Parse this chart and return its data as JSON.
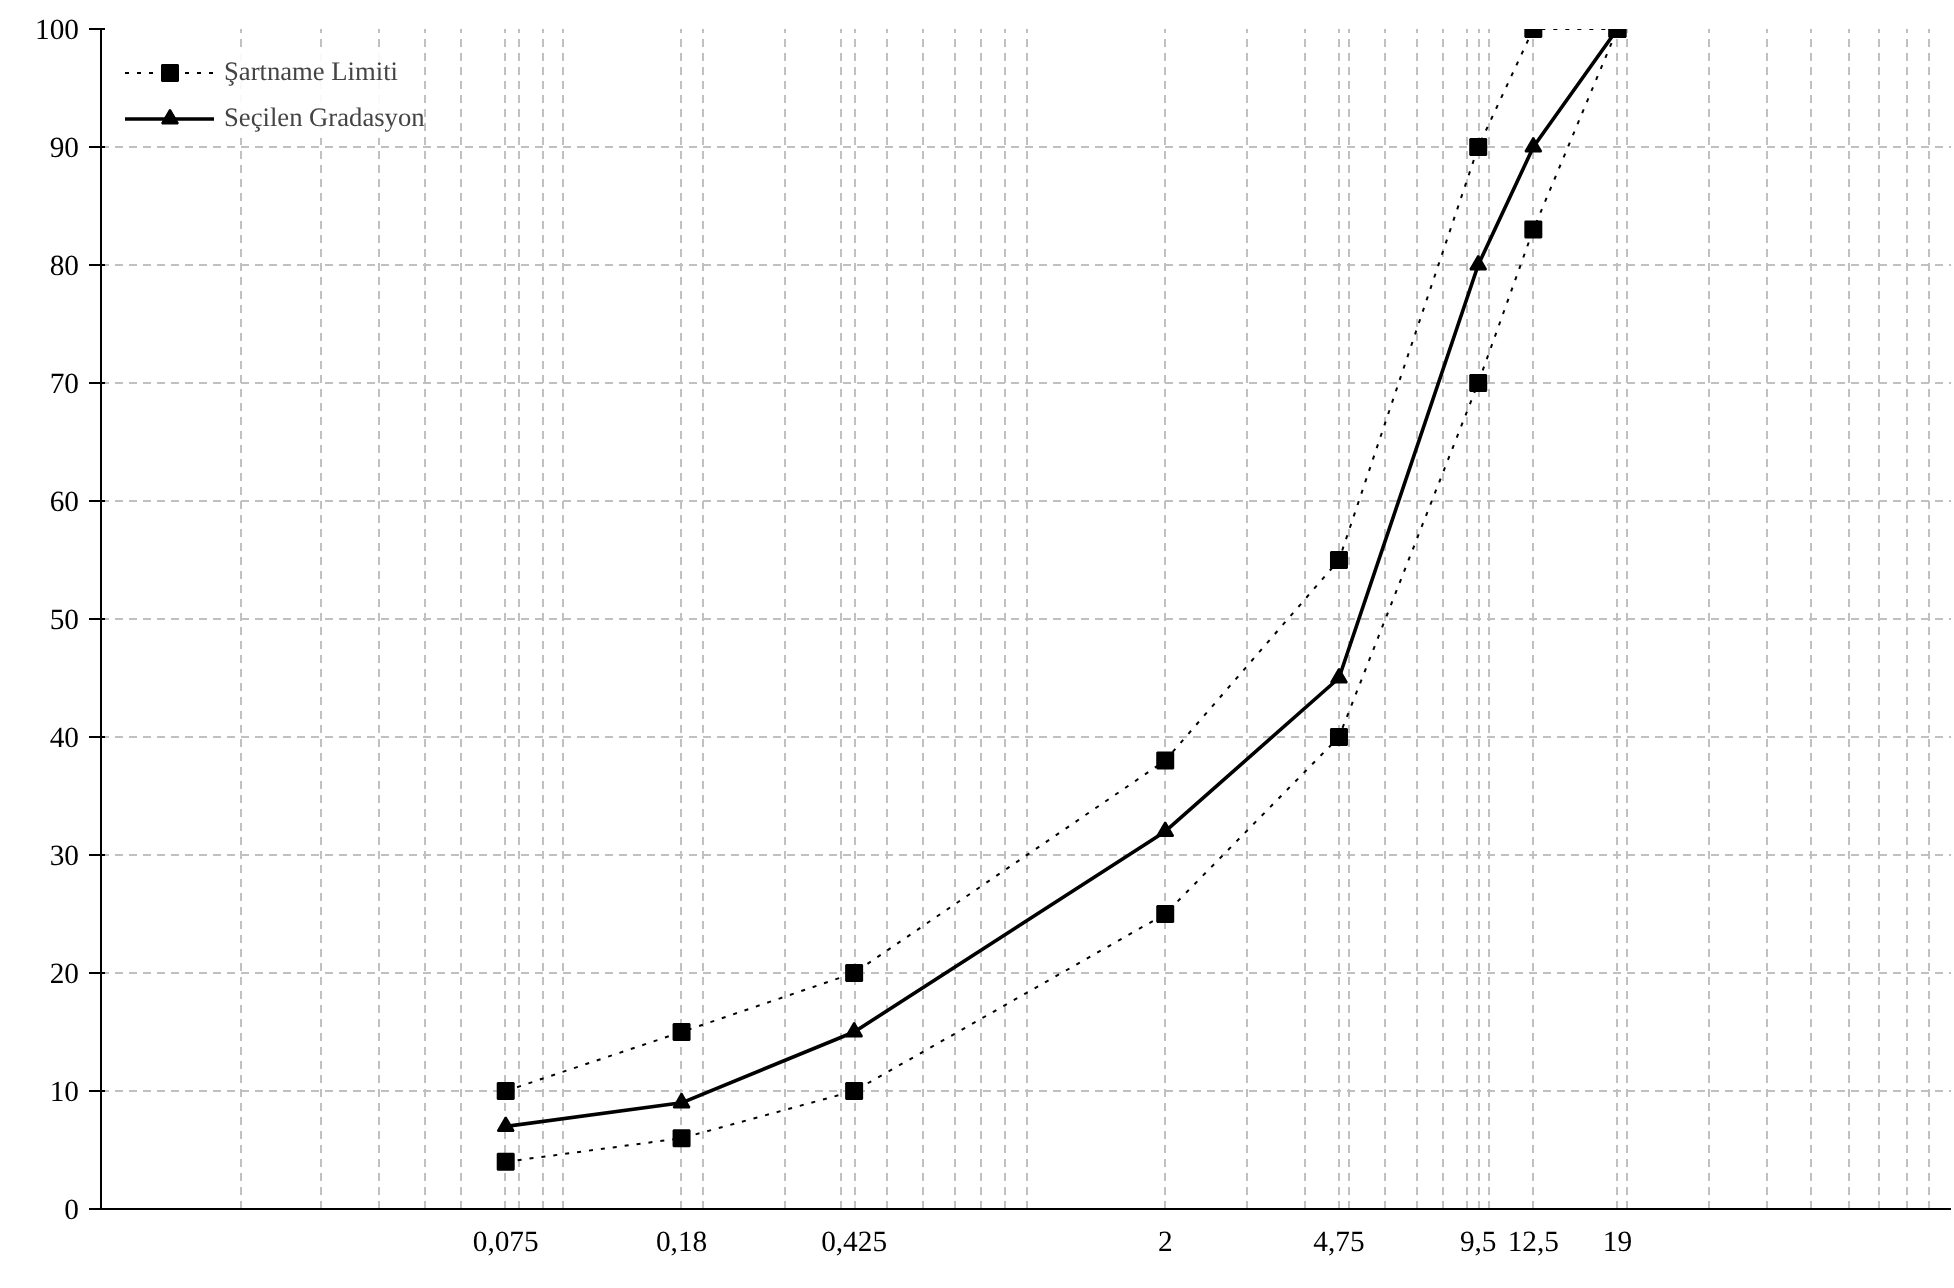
{
  "chart_data": {
    "type": "line",
    "log": "x",
    "grid": true,
    "legend": "top left",
    "xlim": [
      0.01,
      100
    ],
    "ylim": [
      0,
      100
    ],
    "xticks": [
      {
        "value": 0.02,
        "label": null
      },
      {
        "value": 0.03,
        "label": null
      },
      {
        "value": 0.04,
        "label": null
      },
      {
        "value": 0.05,
        "label": null
      },
      {
        "value": 0.06,
        "label": null
      },
      {
        "value": 0.075,
        "label": "0,075"
      },
      {
        "value": 0.08,
        "label": null
      },
      {
        "value": 0.09,
        "label": null
      },
      {
        "value": 0.1,
        "label": null
      },
      {
        "value": 0.18,
        "label": "0,18"
      },
      {
        "value": 0.2,
        "label": null
      },
      {
        "value": 0.3,
        "label": null
      },
      {
        "value": 0.4,
        "label": null
      },
      {
        "value": 0.425,
        "label": "0,425"
      },
      {
        "value": 0.5,
        "label": null
      },
      {
        "value": 0.6,
        "label": null
      },
      {
        "value": 0.7,
        "label": null
      },
      {
        "value": 0.8,
        "label": null
      },
      {
        "value": 0.9,
        "label": null
      },
      {
        "value": 1,
        "label": null
      },
      {
        "value": 2,
        "label": "2"
      },
      {
        "value": 3,
        "label": null
      },
      {
        "value": 4,
        "label": null
      },
      {
        "value": 4.75,
        "label": "4,75"
      },
      {
        "value": 5,
        "label": null
      },
      {
        "value": 6,
        "label": null
      },
      {
        "value": 7,
        "label": null
      },
      {
        "value": 8,
        "label": null
      },
      {
        "value": 9,
        "label": null
      },
      {
        "value": 9.5,
        "label": "9,5"
      },
      {
        "value": 10,
        "label": null
      },
      {
        "value": 12.5,
        "label": "12,5"
      },
      {
        "value": 19,
        "label": "19"
      },
      {
        "value": 20,
        "label": null
      },
      {
        "value": 30,
        "label": null
      },
      {
        "value": 40,
        "label": null
      },
      {
        "value": 50,
        "label": null
      },
      {
        "value": 60,
        "label": null
      },
      {
        "value": 70,
        "label": null
      },
      {
        "value": 80,
        "label": null
      },
      {
        "value": 90,
        "label": null
      }
    ],
    "yticks": [
      0,
      10,
      20,
      30,
      40,
      50,
      60,
      70,
      80,
      90,
      100
    ],
    "x": [
      0.075,
      0.18,
      0.425,
      2,
      4.75,
      9.5,
      12.5,
      19
    ],
    "series": [
      {
        "name": "Şartname Limiti",
        "color": "#000000",
        "marker": "square",
        "line_style": "dotted",
        "values": [
          10,
          15,
          20,
          38,
          55,
          90,
          100,
          100
        ]
      },
      {
        "color": "#000000",
        "marker": "square",
        "line_style": "dotted",
        "values": [
          4,
          6,
          10,
          25,
          40,
          70,
          83,
          100
        ]
      },
      {
        "name": "Seçilen Gradasyon",
        "color": "#000000",
        "marker": "triangle",
        "line_style": "solid",
        "values": [
          7,
          9,
          15,
          32,
          45,
          80,
          90,
          100
        ]
      }
    ]
  }
}
